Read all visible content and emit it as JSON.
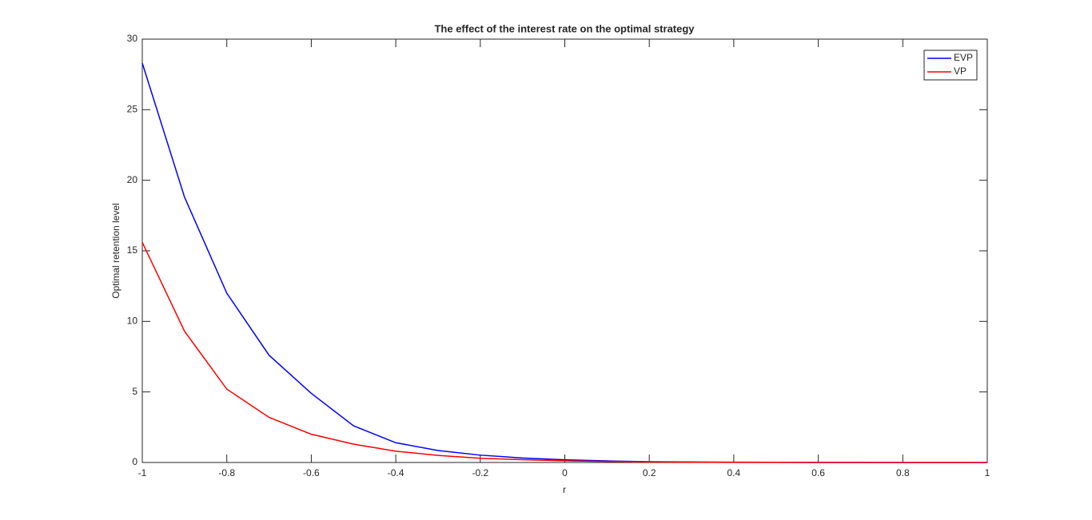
{
  "chart_data": {
    "type": "line",
    "title": "The effect of the interest rate on the optimal strategy",
    "x_label": "r",
    "y_label": "Optimal retention level",
    "x": [
      -1,
      -0.9,
      -0.8,
      -0.7,
      -0.6,
      -0.5,
      -0.4,
      -0.3,
      -0.2,
      -0.1,
      0,
      0.1,
      0.2,
      0.3,
      0.4,
      0.5,
      0.6,
      0.7,
      0.8,
      0.9,
      1
    ],
    "series": [
      {
        "name": "EVP",
        "color": "#0000ff",
        "values": [
          28.3,
          18.8,
          12.0,
          7.6,
          4.9,
          2.6,
          1.4,
          0.85,
          0.52,
          0.32,
          0.19,
          0.11,
          0.06,
          0.035,
          0.02,
          0.012,
          0.007,
          0.004,
          0.002,
          0.001,
          0.0005
        ]
      },
      {
        "name": "VP",
        "color": "#ff0000",
        "values": [
          15.6,
          9.3,
          5.2,
          3.2,
          2.0,
          1.3,
          0.8,
          0.5,
          0.3,
          0.2,
          0.12,
          0.07,
          0.04,
          0.02,
          0.01,
          0.006,
          0.003,
          0.002,
          0.001,
          0.0005,
          0.0002
        ]
      }
    ],
    "xlim": [
      -1,
      1
    ],
    "xticks": [
      -1,
      -0.8,
      -0.6,
      -0.4,
      -0.2,
      0,
      0.2,
      0.4,
      0.6,
      0.8,
      1
    ],
    "ylim": [
      0,
      30
    ],
    "yticks": [
      0,
      5,
      10,
      15,
      20,
      25,
      30
    ],
    "grid": false,
    "legend": "top-right"
  }
}
